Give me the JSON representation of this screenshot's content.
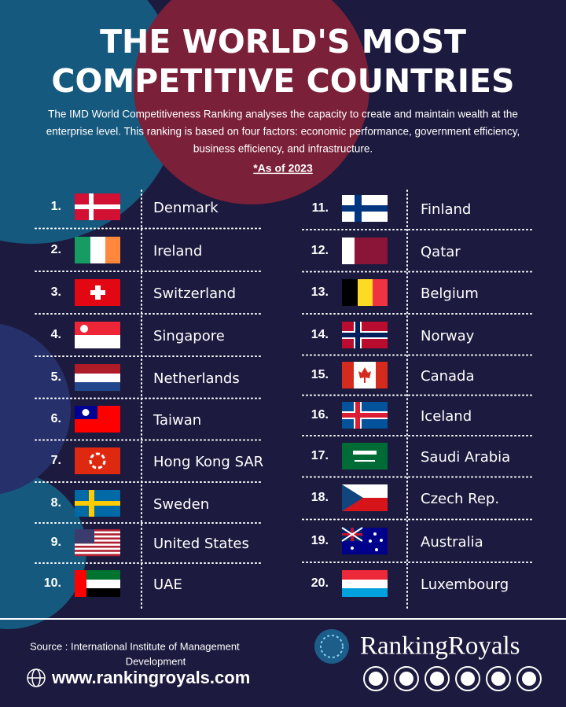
{
  "header": {
    "title_lines": [
      "THE WORLD'S MOST",
      "COMPETITIVE COUNTRIES"
    ],
    "description_lines": [
      "The IMD World Competitiveness Ranking analyses the capacity to create and maintain wealth at the",
      "enterprise level. This ranking is based on four factors: economic performance, government efficiency,",
      "business efficiency, and infrastructure."
    ],
    "note": "*As of 2023"
  },
  "rankings": [
    {
      "rank": "1.",
      "country": "Denmark"
    },
    {
      "rank": "2.",
      "country": "Ireland"
    },
    {
      "rank": "3.",
      "country": "Switzerland"
    },
    {
      "rank": "4.",
      "country": "Singapore"
    },
    {
      "rank": "5.",
      "country": "Netherlands"
    },
    {
      "rank": "6.",
      "country": "Taiwan"
    },
    {
      "rank": "7.",
      "country": "Hong Kong SAR"
    },
    {
      "rank": "8.",
      "country": "Sweden"
    },
    {
      "rank": "9.",
      "country": "United States"
    },
    {
      "rank": "10.",
      "country": "UAE"
    },
    {
      "rank": "11.",
      "country": "Finland"
    },
    {
      "rank": "12.",
      "country": "Qatar"
    },
    {
      "rank": "13.",
      "country": "Belgium"
    },
    {
      "rank": "14.",
      "country": "Norway"
    },
    {
      "rank": "15.",
      "country": "Canada"
    },
    {
      "rank": "16.",
      "country": "Iceland"
    },
    {
      "rank": "17.",
      "country": "Saudi Arabia"
    },
    {
      "rank": "18.",
      "country": "Czech Rep."
    },
    {
      "rank": "19.",
      "country": "Australia"
    },
    {
      "rank": "20.",
      "country": "Luxembourg"
    }
  ],
  "footer": {
    "source_lines": [
      "Source : International Institute of Management",
      "Development"
    ],
    "website": "www.rankingroyals.com",
    "brand": "RankingRoyals"
  }
}
